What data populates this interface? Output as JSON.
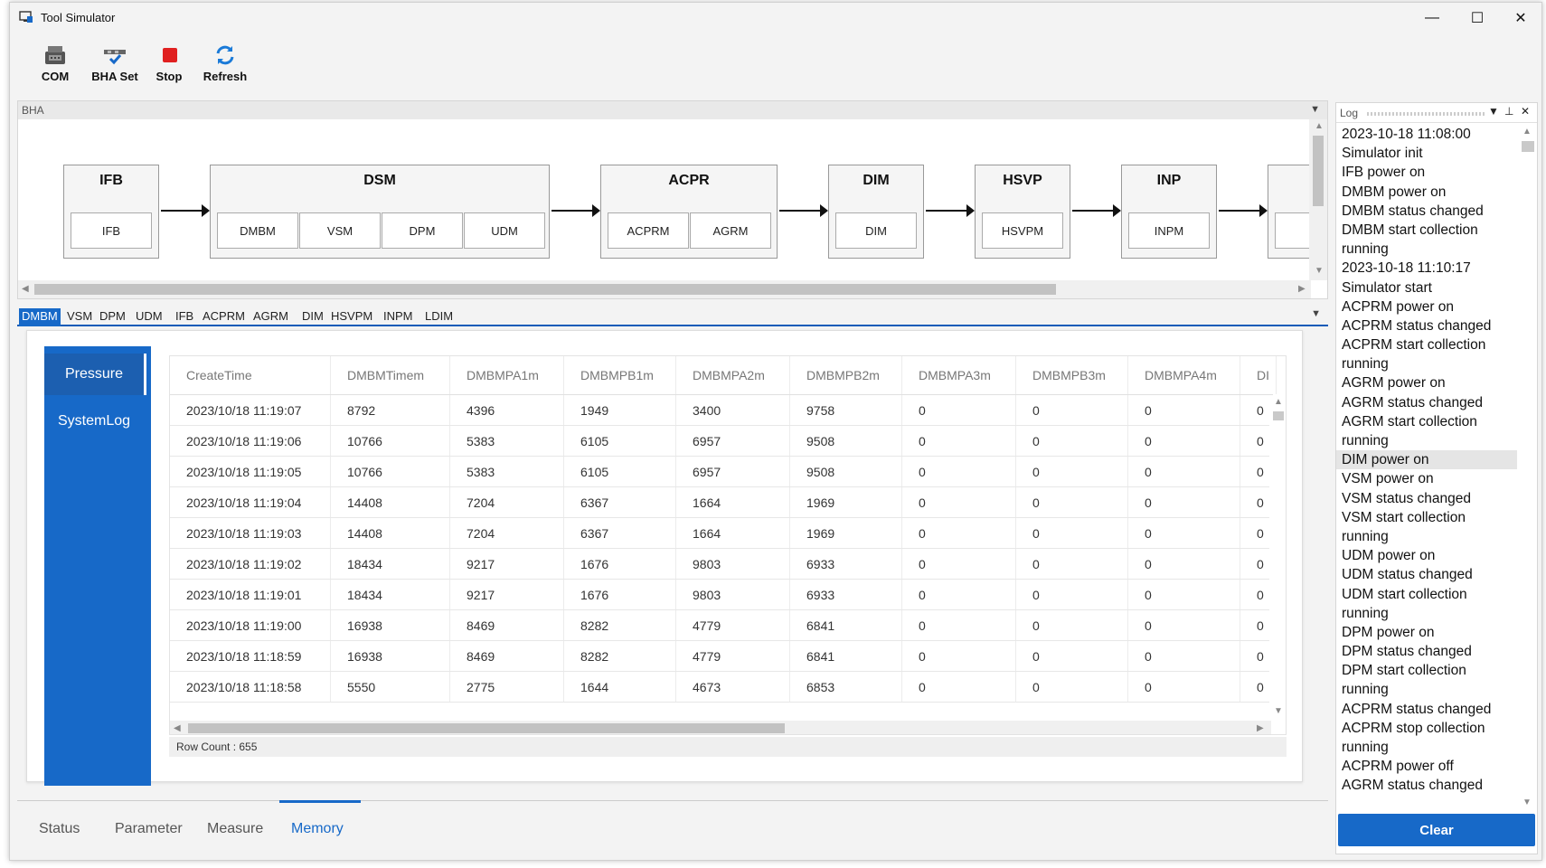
{
  "window": {
    "title": "Tool Simulator",
    "minimize": "—",
    "maximize": "☐",
    "close": "✕"
  },
  "toolbar": {
    "com": "COM",
    "bha_set": "BHA Set",
    "stop": "Stop",
    "refresh": "Refresh"
  },
  "bha_panel": {
    "title": "BHA",
    "blocks": [
      {
        "name": "IFB",
        "subs": [
          "IFB"
        ]
      },
      {
        "name": "DSM",
        "subs": [
          "DMBM",
          "VSM",
          "DPM",
          "UDM"
        ]
      },
      {
        "name": "ACPR",
        "subs": [
          "ACPRM",
          "AGRM"
        ]
      },
      {
        "name": "DIM",
        "subs": [
          "DIM"
        ]
      },
      {
        "name": "HSVP",
        "subs": [
          "HSVPM"
        ]
      },
      {
        "name": "INP",
        "subs": [
          "INPM"
        ]
      }
    ]
  },
  "module_tabs": [
    "DMBM",
    "VSM",
    "DPM",
    "UDM",
    "IFB",
    "ACPRM",
    "AGRM",
    "DIM",
    "HSVPM",
    "INPM",
    "LDIM"
  ],
  "left_nav": [
    "Pressure",
    "SystemLog"
  ],
  "grid": {
    "columns": [
      "CreateTime",
      "DMBMTimem",
      "DMBMPA1m",
      "DMBMPB1m",
      "DMBMPA2m",
      "DMBMPB2m",
      "DMBMPA3m",
      "DMBMPB3m",
      "DMBMPA4m",
      "DI"
    ],
    "rows": [
      [
        "2023/10/18 11:19:07",
        "8792",
        "4396",
        "1949",
        "3400",
        "9758",
        "0",
        "0",
        "0",
        "0"
      ],
      [
        "2023/10/18 11:19:06",
        "10766",
        "5383",
        "6105",
        "6957",
        "9508",
        "0",
        "0",
        "0",
        "0"
      ],
      [
        "2023/10/18 11:19:05",
        "10766",
        "5383",
        "6105",
        "6957",
        "9508",
        "0",
        "0",
        "0",
        "0"
      ],
      [
        "2023/10/18 11:19:04",
        "14408",
        "7204",
        "6367",
        "1664",
        "1969",
        "0",
        "0",
        "0",
        "0"
      ],
      [
        "2023/10/18 11:19:03",
        "14408",
        "7204",
        "6367",
        "1664",
        "1969",
        "0",
        "0",
        "0",
        "0"
      ],
      [
        "2023/10/18 11:19:02",
        "18434",
        "9217",
        "1676",
        "9803",
        "6933",
        "0",
        "0",
        "0",
        "0"
      ],
      [
        "2023/10/18 11:19:01",
        "18434",
        "9217",
        "1676",
        "9803",
        "6933",
        "0",
        "0",
        "0",
        "0"
      ],
      [
        "2023/10/18 11:19:00",
        "16938",
        "8469",
        "8282",
        "4779",
        "6841",
        "0",
        "0",
        "0",
        "0"
      ],
      [
        "2023/10/18 11:18:59",
        "16938",
        "8469",
        "8282",
        "4779",
        "6841",
        "0",
        "0",
        "0",
        "0"
      ],
      [
        "2023/10/18 11:18:58",
        "5550",
        "2775",
        "1644",
        "4673",
        "6853",
        "0",
        "0",
        "0",
        "0"
      ]
    ],
    "row_count_label": "Row Count :",
    "row_count": "655"
  },
  "bottom_tabs": [
    "Status",
    "Parameter",
    "Measure",
    "Memory"
  ],
  "log": {
    "title": "Log",
    "lines": [
      "2023-10-18 11:08:00",
      "Simulator init",
      "IFB power on",
      "DMBM power on",
      "DMBM status changed",
      "DMBM start collection",
      "running",
      "2023-10-18 11:10:17",
      "Simulator start",
      "ACPRM power on",
      "ACPRM status changed",
      "ACPRM start collection",
      "running",
      "AGRM power on",
      "AGRM status changed",
      "AGRM start collection",
      "running",
      "DIM power on",
      "VSM power on",
      "VSM status changed",
      "VSM start collection",
      "running",
      "UDM power on",
      "UDM status changed",
      "UDM start collection",
      "running",
      "DPM power on",
      "DPM status changed",
      "DPM start collection",
      "running",
      "ACPRM status changed",
      "ACPRM stop collection",
      "running",
      "ACPRM power off",
      "AGRM status changed"
    ],
    "highlighted_line": 17,
    "clear_label": "Clear"
  },
  "colors": {
    "accent": "#1769c8",
    "toolbar_bg": "#f3f3f3",
    "stop_red": "#e02020"
  }
}
